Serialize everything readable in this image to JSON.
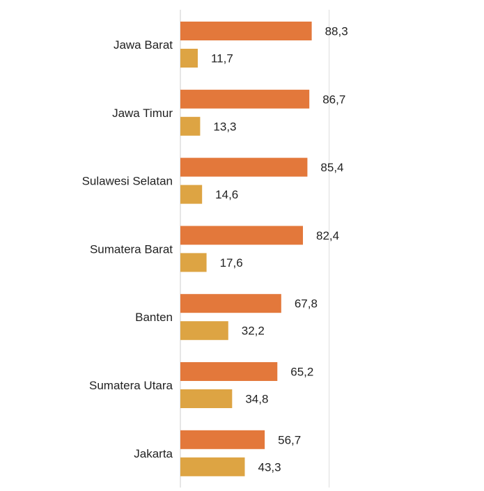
{
  "chart_data": {
    "type": "bar",
    "orientation": "horizontal",
    "categories": [
      "Jawa Barat",
      "Jawa Timur",
      "Sulawesi Selatan",
      "Sumatera Barat",
      "Banten",
      "Sumatera Utara",
      "Jakarta"
    ],
    "series": [
      {
        "values": [
          88.3,
          86.7,
          85.4,
          82.4,
          67.8,
          65.2,
          56.7
        ],
        "labels": [
          "88,3",
          "86,7",
          "85,4",
          "82,4",
          "67,8",
          "65,2",
          "56,7"
        ],
        "color": "#E3783B"
      },
      {
        "values": [
          11.7,
          13.3,
          14.6,
          17.6,
          32.2,
          34.8,
          43.3
        ],
        "labels": [
          "11,7",
          "13,3",
          "14,6",
          "17,6",
          "32,2",
          "34,8",
          "43,3"
        ],
        "color": "#DDA443"
      }
    ],
    "xlim": [
      0,
      100
    ],
    "grid": true,
    "legend": "none",
    "colors": {
      "gridline": "#DDDDDD",
      "axis": "#CCCCCC",
      "text": "#222222"
    }
  }
}
